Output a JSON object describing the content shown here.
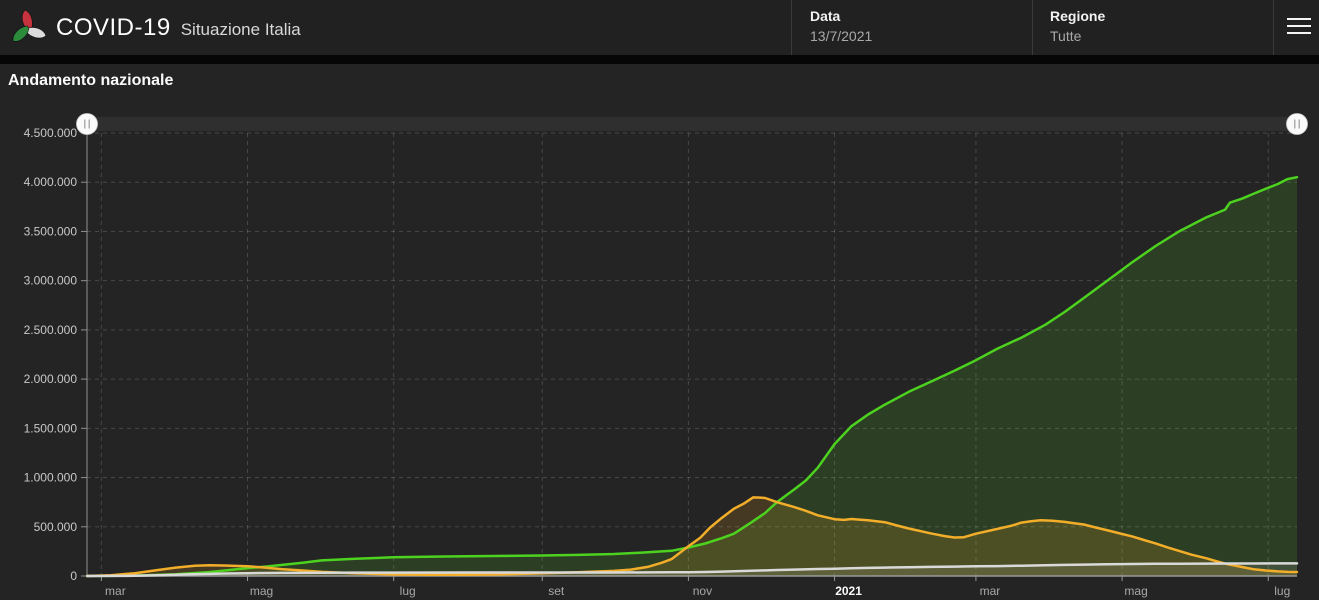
{
  "header": {
    "title": "COVID-19",
    "subtitle": "Situazione Italia",
    "logo": {
      "name": "protezione-civile-logo",
      "colors": {
        "red": "#c5333e",
        "green": "#2c8c3c",
        "white": "#dcdcdc"
      }
    },
    "fields": [
      {
        "label": "Data",
        "value": "13/7/2021"
      },
      {
        "label": "Regione",
        "value": "Tutte"
      }
    ],
    "menu_icon": "hamburger-icon"
  },
  "section": {
    "title": "Andamento nazionale"
  },
  "chart_data": {
    "type": "area",
    "title": "Andamento nazionale",
    "grid": true,
    "legend_position": "none",
    "x_axis": {
      "start_label_date": "2020-02-24",
      "end_label_date": "2021-07-13",
      "day_span": 505,
      "tick_days": [
        6,
        67,
        128,
        190,
        251,
        312,
        371,
        432,
        493
      ],
      "tick_labels": [
        "mar",
        "mag",
        "lug",
        "set",
        "nov",
        "2021",
        "mar",
        "mag",
        "lug"
      ],
      "bold_tick": "2021"
    },
    "y_axis": {
      "min": 0,
      "max": 4500000,
      "tick_step": 500000,
      "tick_labels": [
        "0",
        "500.000",
        "1.000.000",
        "1.500.000",
        "2.000.000",
        "2.500.000",
        "3.000.000",
        "3.500.000",
        "4.000.000",
        "4.500.000"
      ]
    },
    "range_slider": {
      "left_handle_at": "start",
      "right_handle_at": "end"
    },
    "series": [
      {
        "name": "green",
        "color": "#4cd21f",
        "fill": "rgba(86,200,34,0.16)",
        "points": [
          [
            0,
            0
          ],
          [
            15,
            3000
          ],
          [
            25,
            8000
          ],
          [
            37,
            17000
          ],
          [
            51,
            40000
          ],
          [
            60,
            62000
          ],
          [
            67,
            80000
          ],
          [
            75,
            97000
          ],
          [
            81,
            112000
          ],
          [
            90,
            135000
          ],
          [
            98,
            158000
          ],
          [
            112,
            175000
          ],
          [
            128,
            190000
          ],
          [
            145,
            197000
          ],
          [
            159,
            201000
          ],
          [
            175,
            204000
          ],
          [
            190,
            208000
          ],
          [
            205,
            214000
          ],
          [
            220,
            223000
          ],
          [
            234,
            241000
          ],
          [
            244,
            256000
          ],
          [
            251,
            290000
          ],
          [
            258,
            330000
          ],
          [
            265,
            385000
          ],
          [
            270,
            430000
          ],
          [
            277,
            540000
          ],
          [
            283,
            640000
          ],
          [
            288,
            752000
          ],
          [
            295,
            877000
          ],
          [
            300,
            970000
          ],
          [
            305,
            1100000
          ],
          [
            312,
            1341000
          ],
          [
            319,
            1521000
          ],
          [
            326,
            1641000
          ],
          [
            333,
            1741000
          ],
          [
            343,
            1871000
          ],
          [
            352,
            1972000
          ],
          [
            362,
            2084000
          ],
          [
            371,
            2192000
          ],
          [
            380,
            2310000
          ],
          [
            390,
            2422000
          ],
          [
            400,
            2553000
          ],
          [
            408,
            2682000
          ],
          [
            416,
            2824000
          ],
          [
            426,
            3003000
          ],
          [
            436,
            3184000
          ],
          [
            446,
            3352000
          ],
          [
            456,
            3503000
          ],
          [
            467,
            3642000
          ],
          [
            475,
            3722000
          ],
          [
            477,
            3792000
          ],
          [
            482,
            3833000
          ],
          [
            487,
            3884000
          ],
          [
            492,
            3934000
          ],
          [
            497,
            3982000
          ],
          [
            501,
            4032000
          ],
          [
            505,
            4051000
          ]
        ]
      },
      {
        "name": "orange",
        "color": "#f2ae2a",
        "fill": "rgba(240,170,40,0.16)",
        "points": [
          [
            0,
            300
          ],
          [
            10,
            8000
          ],
          [
            20,
            28000
          ],
          [
            30,
            62000
          ],
          [
            37,
            85000
          ],
          [
            45,
            105000
          ],
          [
            51,
            110000
          ],
          [
            57,
            107000
          ],
          [
            67,
            100000
          ],
          [
            75,
            84000
          ],
          [
            81,
            70000
          ],
          [
            90,
            56000
          ],
          [
            98,
            42000
          ],
          [
            112,
            27000
          ],
          [
            128,
            15000
          ],
          [
            142,
            12400
          ],
          [
            159,
            12600
          ],
          [
            173,
            16000
          ],
          [
            190,
            28000
          ],
          [
            205,
            39000
          ],
          [
            220,
            52000
          ],
          [
            227,
            65000
          ],
          [
            234,
            92000
          ],
          [
            240,
            135000
          ],
          [
            244,
            172000
          ],
          [
            251,
            302000
          ],
          [
            256,
            390000
          ],
          [
            260,
            492000
          ],
          [
            265,
            592000
          ],
          [
            270,
            684000
          ],
          [
            274,
            733000
          ],
          [
            278,
            798000
          ],
          [
            281,
            796000
          ],
          [
            283,
            792000
          ],
          [
            288,
            750000
          ],
          [
            295,
            702000
          ],
          [
            300,
            662000
          ],
          [
            305,
            617000
          ],
          [
            312,
            577000
          ],
          [
            316,
            570000
          ],
          [
            319,
            579000
          ],
          [
            323,
            572000
          ],
          [
            326,
            566000
          ],
          [
            333,
            547000
          ],
          [
            338,
            513000
          ],
          [
            343,
            483000
          ],
          [
            352,
            434000
          ],
          [
            358,
            405000
          ],
          [
            362,
            391000
          ],
          [
            366,
            394000
          ],
          [
            371,
            430000
          ],
          [
            380,
            478000
          ],
          [
            386,
            512000
          ],
          [
            390,
            542000
          ],
          [
            394,
            556000
          ],
          [
            398,
            566000
          ],
          [
            403,
            562000
          ],
          [
            408,
            550000
          ],
          [
            412,
            536000
          ],
          [
            416,
            523000
          ],
          [
            421,
            493000
          ],
          [
            426,
            463000
          ],
          [
            431,
            433000
          ],
          [
            436,
            403000
          ],
          [
            441,
            367000
          ],
          [
            446,
            331000
          ],
          [
            451,
            291000
          ],
          [
            456,
            253000
          ],
          [
            461,
            216000
          ],
          [
            467,
            181000
          ],
          [
            471,
            152000
          ],
          [
            475,
            126000
          ],
          [
            479,
            107000
          ],
          [
            482,
            91000
          ],
          [
            487,
            68000
          ],
          [
            492,
            56000
          ],
          [
            497,
            47000
          ],
          [
            501,
            42000
          ],
          [
            505,
            40400
          ]
        ]
      },
      {
        "name": "gray",
        "color": "#d9d9d9",
        "fill": "rgba(255,255,255,0.10)",
        "points": [
          [
            0,
            0
          ],
          [
            20,
            2200
          ],
          [
            30,
            6800
          ],
          [
            37,
            13000
          ],
          [
            44,
            18000
          ],
          [
            51,
            21600
          ],
          [
            58,
            25000
          ],
          [
            67,
            28200
          ],
          [
            81,
            31300
          ],
          [
            98,
            33600
          ],
          [
            112,
            34300
          ],
          [
            128,
            34800
          ],
          [
            159,
            35200
          ],
          [
            190,
            35500
          ],
          [
            205,
            35700
          ],
          [
            220,
            36000
          ],
          [
            234,
            36600
          ],
          [
            244,
            37700
          ],
          [
            251,
            39000
          ],
          [
            258,
            41000
          ],
          [
            265,
            45000
          ],
          [
            270,
            49000
          ],
          [
            277,
            53000
          ],
          [
            281,
            56000
          ],
          [
            288,
            61000
          ],
          [
            295,
            65000
          ],
          [
            305,
            71000
          ],
          [
            312,
            74200
          ],
          [
            319,
            78000
          ],
          [
            326,
            81800
          ],
          [
            333,
            85200
          ],
          [
            343,
            89300
          ],
          [
            352,
            92000
          ],
          [
            362,
            95200
          ],
          [
            371,
            98300
          ],
          [
            380,
            101000
          ],
          [
            390,
            105000
          ],
          [
            400,
            110000
          ],
          [
            408,
            113000
          ],
          [
            416,
            116000
          ],
          [
            426,
            119200
          ],
          [
            436,
            121700
          ],
          [
            446,
            123700
          ],
          [
            456,
            125200
          ],
          [
            467,
            126300
          ],
          [
            477,
            127000
          ],
          [
            487,
            127400
          ],
          [
            497,
            127800
          ],
          [
            505,
            127900
          ]
        ]
      }
    ]
  },
  "colors": {
    "header_bg": "#212121",
    "panel_bg": "#242424",
    "strip_bg": "#060606",
    "gridline": "rgba(255,255,255,0.16)",
    "y_axis_line": "#8f8f8f",
    "x_axis_line": "#9a9a9a",
    "y_tick_text": "#c8c8c8",
    "x_tick_text": "#a8a8a8",
    "bold_tick_text": "#fafafa",
    "slider_track": "#2f2f2f",
    "slider_handle": "#fafafa",
    "slider_grip": "#9a9a9a"
  }
}
